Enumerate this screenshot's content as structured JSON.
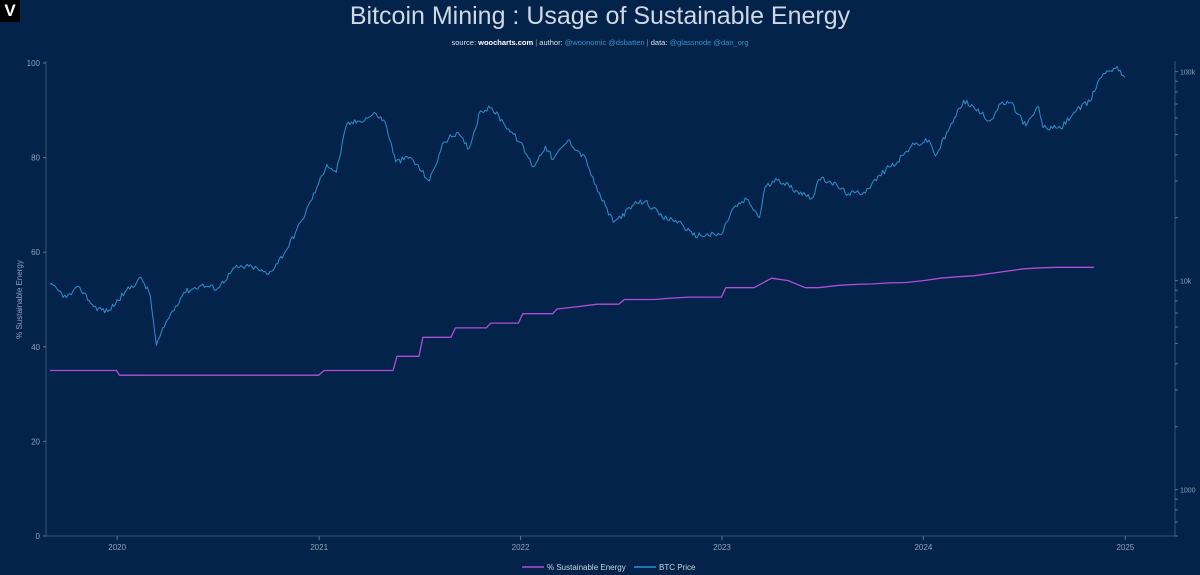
{
  "logo_glyph": "V",
  "header": {
    "title": "Bitcoin Mining : Usage of Sustainable Energy",
    "source_label": "source: ",
    "source_site": "woocharts.com",
    "author_label": "author: ",
    "author_handles": "@woonomic @dsbatten",
    "data_label": "data: ",
    "data_handles": "@glassnode @dan_org",
    "separator": "|"
  },
  "colors": {
    "background": "#03234a",
    "energy_line": "#b14ed8",
    "price_line": "#2f8fce",
    "axis_text": "#8fa3b8"
  },
  "chart_data": {
    "type": "line",
    "title": "Bitcoin Mining : Usage of Sustainable Energy",
    "xlabel": "",
    "ylabel": "% Sustainable Energy",
    "ylim": [
      0,
      100
    ],
    "yticks": [
      "0",
      "20",
      "40",
      "60",
      "80",
      "100"
    ],
    "xticks": [
      "2020",
      "2021",
      "2022",
      "2023",
      "2024",
      "2025"
    ],
    "y2scale": "log",
    "y2ticks": [
      "1000",
      "10k",
      "100k"
    ],
    "legend_position": "bottom-center",
    "series": [
      {
        "name": "% Sustainable Energy",
        "axis": "left",
        "color": "#b14ed8",
        "points": [
          [
            "2019-09-01",
            35
          ],
          [
            "2019-12-31",
            35
          ],
          [
            "2020-01-05",
            34
          ],
          [
            "2020-12-31",
            34
          ],
          [
            "2021-01-10",
            35
          ],
          [
            "2021-05-15",
            35
          ],
          [
            "2021-05-22",
            38
          ],
          [
            "2021-07-01",
            38
          ],
          [
            "2021-07-08",
            42
          ],
          [
            "2021-08-28",
            42
          ],
          [
            "2021-09-05",
            44
          ],
          [
            "2021-10-31",
            44
          ],
          [
            "2021-11-08",
            45
          ],
          [
            "2021-12-28",
            45
          ],
          [
            "2022-01-05",
            47
          ],
          [
            "2022-02-28",
            47
          ],
          [
            "2022-03-08",
            48
          ],
          [
            "2022-04-15",
            48.5
          ],
          [
            "2022-05-20",
            49
          ],
          [
            "2022-06-28",
            49
          ],
          [
            "2022-07-08",
            50
          ],
          [
            "2022-08-31",
            50
          ],
          [
            "2022-10-01",
            50.3
          ],
          [
            "2022-11-01",
            50.5
          ],
          [
            "2022-12-31",
            50.5
          ],
          [
            "2023-01-08",
            52.5
          ],
          [
            "2023-02-28",
            52.5
          ],
          [
            "2023-04-01",
            54.5
          ],
          [
            "2023-05-01",
            54
          ],
          [
            "2023-06-01",
            52.5
          ],
          [
            "2023-06-25",
            52.5
          ],
          [
            "2023-08-01",
            53
          ],
          [
            "2023-09-01",
            53.2
          ],
          [
            "2023-10-01",
            53.3
          ],
          [
            "2023-11-01",
            53.5
          ],
          [
            "2023-12-01",
            53.6
          ],
          [
            "2024-01-01",
            54
          ],
          [
            "2024-02-01",
            54.5
          ],
          [
            "2024-03-01",
            54.8
          ],
          [
            "2024-04-01",
            55
          ],
          [
            "2024-05-01",
            55.5
          ],
          [
            "2024-06-01",
            56
          ],
          [
            "2024-07-01",
            56.5
          ],
          [
            "2024-08-01",
            56.7
          ],
          [
            "2024-09-01",
            56.8
          ],
          [
            "2024-10-01",
            56.8
          ],
          [
            "2024-11-05",
            56.8
          ]
        ]
      },
      {
        "name": "BTC Price",
        "axis": "right",
        "color": "#2f8fce",
        "points": [
          [
            "2019-09-01",
            9600
          ],
          [
            "2019-10-01",
            8300
          ],
          [
            "2019-10-25",
            9300
          ],
          [
            "2019-11-20",
            7500
          ],
          [
            "2019-12-15",
            7100
          ],
          [
            "2020-01-15",
            8800
          ],
          [
            "2020-02-14",
            10300
          ],
          [
            "2020-03-01",
            8500
          ],
          [
            "2020-03-12",
            4900
          ],
          [
            "2020-04-01",
            6500
          ],
          [
            "2020-05-01",
            8800
          ],
          [
            "2020-06-01",
            9500
          ],
          [
            "2020-07-01",
            9200
          ],
          [
            "2020-08-01",
            11500
          ],
          [
            "2020-09-01",
            11700
          ],
          [
            "2020-10-01",
            10700
          ],
          [
            "2020-11-01",
            13800
          ],
          [
            "2020-12-01",
            19500
          ],
          [
            "2020-12-31",
            29000
          ],
          [
            "2021-01-15",
            36000
          ],
          [
            "2021-02-01",
            33000
          ],
          [
            "2021-02-20",
            56000
          ],
          [
            "2021-03-15",
            58000
          ],
          [
            "2021-04-14",
            63000
          ],
          [
            "2021-05-01",
            57000
          ],
          [
            "2021-05-20",
            37000
          ],
          [
            "2021-06-15",
            39000
          ],
          [
            "2021-07-20",
            30000
          ],
          [
            "2021-08-15",
            46000
          ],
          [
            "2021-09-07",
            51000
          ],
          [
            "2021-09-30",
            43000
          ],
          [
            "2021-10-20",
            65000
          ],
          [
            "2021-11-10",
            67000
          ],
          [
            "2021-12-01",
            57000
          ],
          [
            "2021-12-31",
            46000
          ],
          [
            "2022-01-24",
            35000
          ],
          [
            "2022-02-15",
            44000
          ],
          [
            "2022-03-01",
            38000
          ],
          [
            "2022-03-28",
            47000
          ],
          [
            "2022-04-30",
            38000
          ],
          [
            "2022-05-15",
            29000
          ],
          [
            "2022-06-18",
            19000
          ],
          [
            "2022-07-31",
            23500
          ],
          [
            "2022-08-15",
            24000
          ],
          [
            "2022-09-15",
            20000
          ],
          [
            "2022-10-15",
            19200
          ],
          [
            "2022-11-09",
            16500
          ],
          [
            "2022-12-31",
            16600
          ],
          [
            "2023-01-20",
            22000
          ],
          [
            "2023-02-15",
            24500
          ],
          [
            "2023-03-10",
            20000
          ],
          [
            "2023-03-20",
            28000
          ],
          [
            "2023-04-14",
            30500
          ],
          [
            "2023-05-15",
            27000
          ],
          [
            "2023-06-15",
            25000
          ],
          [
            "2023-06-25",
            30500
          ],
          [
            "2023-07-15",
            30000
          ],
          [
            "2023-08-18",
            26000
          ],
          [
            "2023-09-15",
            26500
          ],
          [
            "2023-10-25",
            34000
          ],
          [
            "2023-11-15",
            37000
          ],
          [
            "2023-12-10",
            44000
          ],
          [
            "2024-01-11",
            47000
          ],
          [
            "2024-01-23",
            39500
          ],
          [
            "2024-02-15",
            52000
          ],
          [
            "2024-03-14",
            73000
          ],
          [
            "2024-04-15",
            63000
          ],
          [
            "2024-05-01",
            58000
          ],
          [
            "2024-05-20",
            70000
          ],
          [
            "2024-06-07",
            71000
          ],
          [
            "2024-07-05",
            55000
          ],
          [
            "2024-07-28",
            68000
          ],
          [
            "2024-08-05",
            54000
          ],
          [
            "2024-09-06",
            53500
          ],
          [
            "2024-09-30",
            64000
          ],
          [
            "2024-10-29",
            72000
          ],
          [
            "2024-11-12",
            89000
          ],
          [
            "2024-11-22",
            98000
          ],
          [
            "2024-12-05",
            101000
          ],
          [
            "2024-12-17",
            106000
          ],
          [
            "2024-12-31",
            94000
          ]
        ]
      }
    ]
  }
}
